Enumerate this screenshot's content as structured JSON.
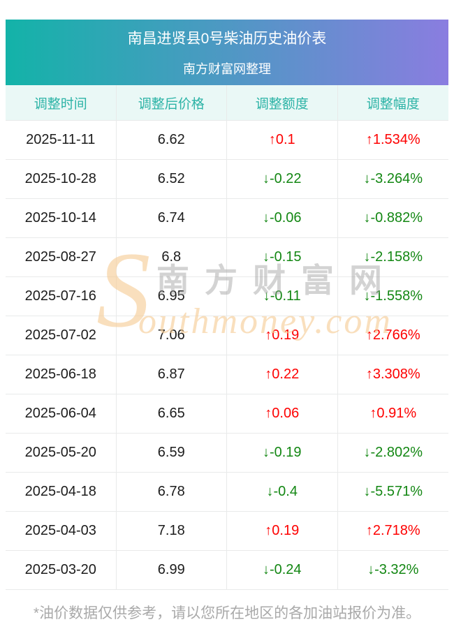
{
  "page": {
    "title": "南昌进贤县0号柴油历史油价表",
    "subtitle": "南方财富网整理",
    "footnote": "*油价数据仅供参考，请以您所在地区的各加油站报价为准。"
  },
  "colors": {
    "banner_gradient_left": "#13b3a8",
    "banner_gradient_right": "#8a7de0",
    "header_row_bg": "#eaf8f6",
    "header_row_text": "#2cb3a6",
    "up_red": "#fe0000",
    "down_green": "#138713"
  },
  "watermark": {
    "initial": "S",
    "cn_text": "南方财富网",
    "en_text": "outhmoney.com"
  },
  "chart_data": {
    "type": "table",
    "title": "南昌进贤县0号柴油历史油价表",
    "subtitle": "南方财富网整理",
    "columns": [
      "调整时间",
      "调整后价格",
      "调整额度",
      "调整幅度"
    ],
    "rows": [
      {
        "date": "2025-11-11",
        "price": "6.62",
        "change": "↑0.1",
        "pct": "↑1.534%",
        "direction": "up"
      },
      {
        "date": "2025-10-28",
        "price": "6.52",
        "change": "↓-0.22",
        "pct": "↓-3.264%",
        "direction": "down"
      },
      {
        "date": "2025-10-14",
        "price": "6.74",
        "change": "↓-0.06",
        "pct": "↓-0.882%",
        "direction": "down"
      },
      {
        "date": "2025-08-27",
        "price": "6.8",
        "change": "↓-0.15",
        "pct": "↓-2.158%",
        "direction": "down"
      },
      {
        "date": "2025-07-16",
        "price": "6.95",
        "change": "↓-0.11",
        "pct": "↓-1.558%",
        "direction": "down"
      },
      {
        "date": "2025-07-02",
        "price": "7.06",
        "change": "↑0.19",
        "pct": "↑2.766%",
        "direction": "up"
      },
      {
        "date": "2025-06-18",
        "price": "6.87",
        "change": "↑0.22",
        "pct": "↑3.308%",
        "direction": "up"
      },
      {
        "date": "2025-06-04",
        "price": "6.65",
        "change": "↑0.06",
        "pct": "↑0.91%",
        "direction": "up"
      },
      {
        "date": "2025-05-20",
        "price": "6.59",
        "change": "↓-0.19",
        "pct": "↓-2.802%",
        "direction": "down"
      },
      {
        "date": "2025-04-18",
        "price": "6.78",
        "change": "↓-0.4",
        "pct": "↓-5.571%",
        "direction": "down"
      },
      {
        "date": "2025-04-03",
        "price": "7.18",
        "change": "↑0.19",
        "pct": "↑2.718%",
        "direction": "up"
      },
      {
        "date": "2025-03-20",
        "price": "6.99",
        "change": "↓-0.24",
        "pct": "↓-3.32%",
        "direction": "down"
      }
    ]
  }
}
